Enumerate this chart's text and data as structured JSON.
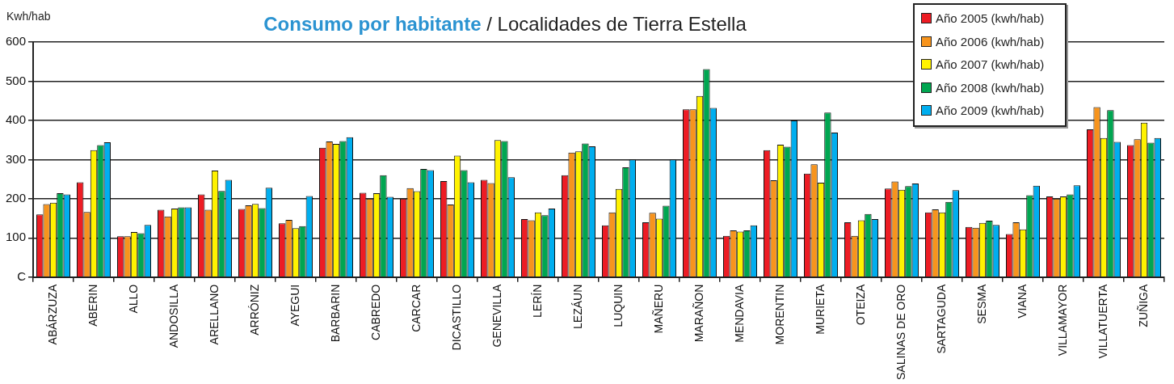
{
  "chart_data": {
    "type": "bar",
    "title": "Consumo por habitante",
    "subtitle": "/ Localidades de Tierra Estella",
    "ylabel": "Kwh/hab",
    "categories": [
      "ABÁRZUZA",
      "ABERIN",
      "ALLO",
      "ANDOSILLA",
      "ARELLANO",
      "ARRÓNIZ",
      "AYEGUI",
      "BARBARIN",
      "CABREDO",
      "CARCAR",
      "DICASTILLO",
      "GENEVILLA",
      "LERÍN",
      "LEZÁUN",
      "LUQUIN",
      "MAÑERU",
      "MARAÑON",
      "MENDAVIA",
      "MORENTIN",
      "MURIETA",
      "OTEIZA",
      "SALINAS DE ORO",
      "SARTAGUDA",
      "SESMA",
      "VIANA",
      "VILLAMAYOR",
      "VILLATUERTA",
      "ZUÑIGA"
    ],
    "series": [
      {
        "name": "Año 2005 (kwh/hab)",
        "color": "#ed1c24",
        "values": [
          160,
          242,
          104,
          172,
          211,
          174,
          137,
          330,
          215,
          200,
          245,
          248,
          148,
          260,
          132,
          140,
          428,
          105,
          324,
          264,
          140,
          226,
          165,
          128,
          110,
          206,
          377,
          337
        ]
      },
      {
        "name": "Año 2006 (kwh/hab)",
        "color": "#f7941d",
        "values": [
          186,
          166,
          104,
          155,
          172,
          183,
          146,
          346,
          200,
          227,
          185,
          240,
          145,
          318,
          165,
          164,
          428,
          119,
          247,
          288,
          105,
          244,
          173,
          126,
          140,
          200,
          434,
          352
        ]
      },
      {
        "name": "Año 2007 (kwh/hab)",
        "color": "#fff200",
        "values": [
          190,
          324,
          115,
          175,
          272,
          187,
          125,
          340,
          214,
          219,
          310,
          350,
          165,
          321,
          225,
          149,
          462,
          116,
          338,
          241,
          145,
          223,
          165,
          138,
          122,
          206,
          355,
          394
        ]
      },
      {
        "name": "Año 2008 (kwh/hab)",
        "color": "#00a651",
        "values": [
          214,
          337,
          112,
          178,
          220,
          176,
          130,
          347,
          260,
          276,
          273,
          347,
          158,
          341,
          280,
          182,
          531,
          119,
          333,
          420,
          161,
          232,
          192,
          144,
          209,
          211,
          426,
          343
        ]
      },
      {
        "name": "Año 2009 (kwh/hab)",
        "color": "#00aeef",
        "values": [
          211,
          344,
          133,
          178,
          248,
          228,
          207,
          357,
          205,
          273,
          242,
          255,
          175,
          334,
          300,
          300,
          432,
          132,
          400,
          369,
          148,
          239,
          222,
          133,
          233,
          234,
          345,
          355
        ]
      }
    ],
    "ylim": [
      0,
      600
    ],
    "yticks": [
      {
        "value": 0,
        "label": "C"
      },
      100,
      200,
      300,
      400,
      500,
      600
    ],
    "grid": "y",
    "legend": "top right"
  }
}
